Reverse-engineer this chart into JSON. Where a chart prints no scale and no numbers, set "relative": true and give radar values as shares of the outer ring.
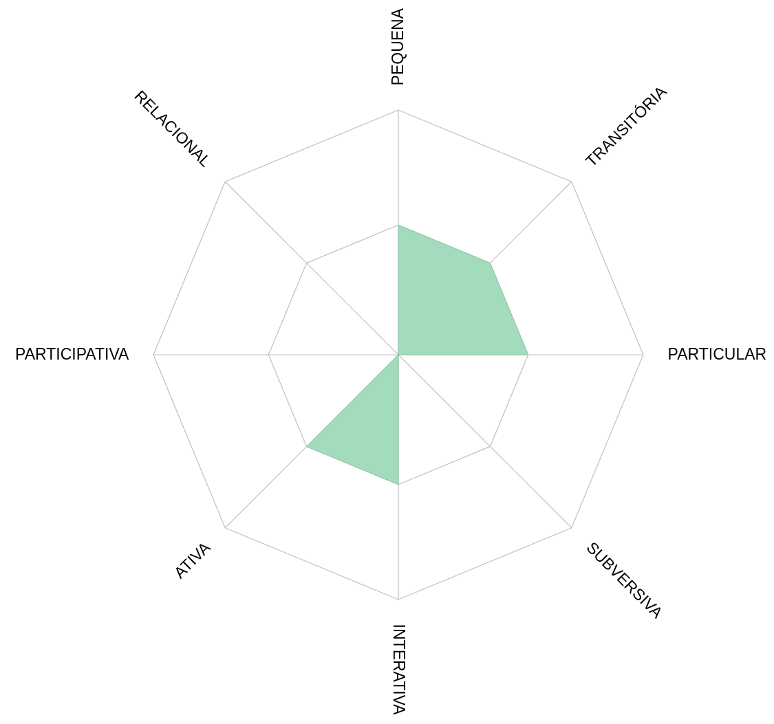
{
  "chart_data": {
    "type": "radar",
    "relative": true,
    "grid": true,
    "categories": [
      "PEQUENA",
      "TRANSITÓRIA",
      "PARTICULAR",
      "SUBVERSIVA",
      "INTERATIVA",
      "ATIVA",
      "PARTICIPATIVA",
      "RELACIONAL"
    ],
    "series": [
      {
        "color": "#a3dcbc",
        "values": [
          0.53,
          0.53,
          0.53,
          0,
          0.53,
          0.53,
          0,
          0
        ]
      }
    ]
  }
}
